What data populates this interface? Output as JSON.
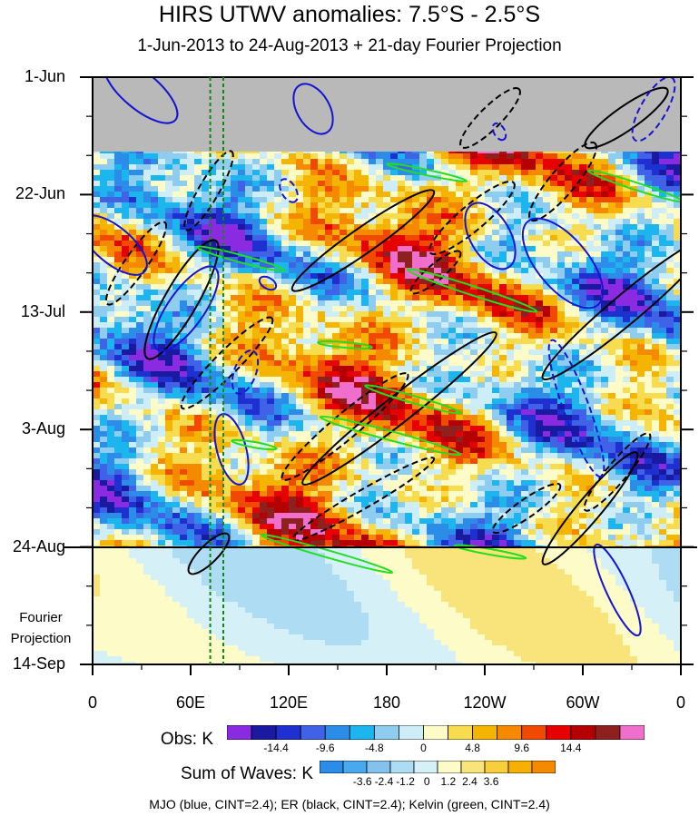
{
  "title": "HIRS UTWV anomalies: 7.5°S - 2.5°S",
  "subtitle": "1-Jun-2013 to 24-Aug-2013 + 21-day Fourier Projection",
  "y_tick_labels": [
    "1-Jun",
    "22-Jun",
    "13-Jul",
    "3-Aug",
    "24-Aug",
    "14-Sep"
  ],
  "x_tick_labels": [
    "0",
    "60E",
    "120E",
    "180",
    "120W",
    "60W",
    "0"
  ],
  "fourier_label": [
    "Fourier",
    "Projection"
  ],
  "obs_colorbar": {
    "label": "Obs: K",
    "colors": [
      "#8a2be2",
      "#1a1aa0",
      "#1f30d0",
      "#3f62e6",
      "#2b8de8",
      "#1cb5ee",
      "#8ecdf0",
      "#cdeef8",
      "#fdfbc8",
      "#f8dc50",
      "#f5b400",
      "#f58a00",
      "#f04a00",
      "#e60000",
      "#b40000",
      "#8e2020",
      "#f06ecc"
    ],
    "tick_labels": [
      "-14.4",
      "-9.6",
      "-4.8",
      "0",
      "4.8",
      "9.6",
      "14.4"
    ]
  },
  "waves_colorbar": {
    "label": "Sum of Waves: K",
    "colors": [
      "#2b8de8",
      "#49a9ee",
      "#83c2ef",
      "#aedcf3",
      "#d6f0f8",
      "#fdfbc8",
      "#f8e47a",
      "#f8cf3a",
      "#f5b000",
      "#f58a00"
    ],
    "tick_labels": [
      "-3.6",
      "-2.4",
      "-1.2",
      "0",
      "1.2",
      "2.4",
      "3.6"
    ]
  },
  "footer": "MJO (blue, CINT=2.4); ER (black, CINT=2.4); Kelvin (green, CINT=2.4)",
  "colors": {
    "mjo": "#1414d2",
    "er": "#000000",
    "kelvin": "#22dd22",
    "missing": "#b9b9b9",
    "guide": "#118811"
  },
  "chart_data": {
    "type": "heatmap",
    "title": "HIRS UTWV anomalies: 7.5°S - 2.5°S",
    "subtitle": "1-Jun-2013 to 24-Aug-2013 + 21-day Fourier Projection",
    "x_axis": {
      "label": "",
      "ticks": [
        "0",
        "60E",
        "120E",
        "180",
        "120W",
        "60W",
        "0"
      ],
      "range_deg_east": [
        0,
        360
      ]
    },
    "y_axis": {
      "label": "",
      "ticks": [
        "1-Jun",
        "22-Jun",
        "13-Jul",
        "3-Aug",
        "24-Aug",
        "14-Sep"
      ],
      "range_days": [
        0,
        105
      ],
      "direction": "time increases downward"
    },
    "observed_period": {
      "start": "1-Jun-2013",
      "end": "24-Aug-2013"
    },
    "projection_period": {
      "start": "24-Aug-2013",
      "end": "14-Sep-2013",
      "label": "Fourier Projection"
    },
    "missing_data": {
      "from": "1-Jun-2013",
      "to": "approx 14-Jun-2013",
      "color": "gray"
    },
    "obs_levels_K": [
      -14.4,
      -12,
      -9.6,
      -7.2,
      -4.8,
      -2.4,
      0,
      2.4,
      4.8,
      7.2,
      9.6,
      12,
      14.4
    ],
    "waves_levels_K": [
      -3.6,
      -2.4,
      -1.2,
      0,
      1.2,
      2.4,
      3.6
    ],
    "contour_interval_K": 2.4,
    "series": [
      {
        "name": "MJO",
        "color": "blue"
      },
      {
        "name": "ER",
        "color": "black"
      },
      {
        "name": "Kelvin",
        "color": "green"
      }
    ],
    "vertical_guides_deg_east": [
      72,
      80
    ]
  }
}
